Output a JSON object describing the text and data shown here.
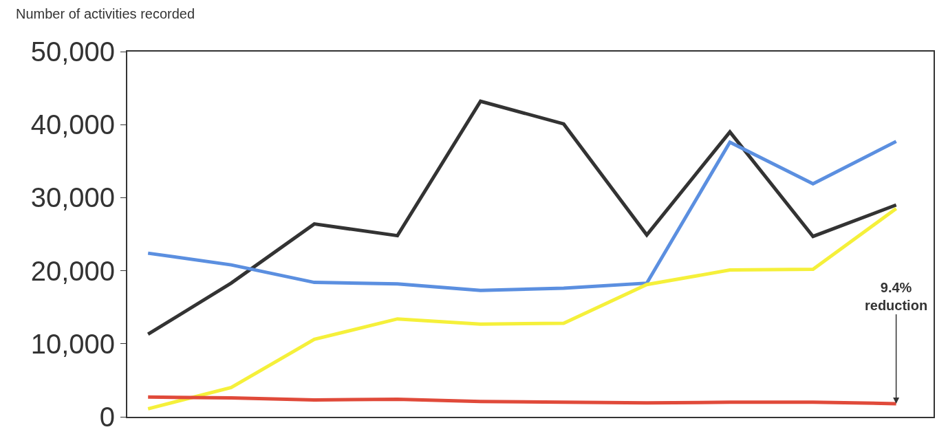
{
  "chart_data": {
    "type": "line",
    "ylabel": "Number of activities recorded",
    "categories": [
      null,
      null,
      null,
      null,
      null,
      null,
      null,
      null,
      null,
      null
    ],
    "series": [
      {
        "color": "#333333",
        "values": [
          11300,
          18300,
          26400,
          24800,
          43200,
          40100,
          24900,
          39000,
          24700,
          29000
        ]
      },
      {
        "color": "#5b8fe0",
        "values": [
          22400,
          20800,
          18400,
          18200,
          17300,
          17600,
          18300,
          37600,
          31900,
          37700
        ]
      },
      {
        "color": "#f5f03a",
        "values": [
          1100,
          4000,
          10600,
          13400,
          12700,
          12800,
          18100,
          20100,
          20200,
          28500
        ]
      },
      {
        "color": "#e04a3a",
        "values": [
          2700,
          2600,
          2300,
          2400,
          2100,
          2000,
          1900,
          2000,
          2000,
          1800
        ]
      }
    ],
    "ylim": [
      0,
      50000
    ],
    "yticks": [
      {
        "value": 0,
        "label": "0"
      },
      {
        "value": 10000,
        "label": "10,000"
      },
      {
        "value": 20000,
        "label": "20,000"
      },
      {
        "value": 30000,
        "label": "30,000"
      },
      {
        "value": 40000,
        "label": "40,000"
      },
      {
        "value": 50000,
        "label": "50,000"
      }
    ],
    "grid": false,
    "marker": "none",
    "line_style": "solid",
    "annotations": [
      {
        "text": "9.4%\nreduction",
        "y": 1800
      }
    ]
  }
}
